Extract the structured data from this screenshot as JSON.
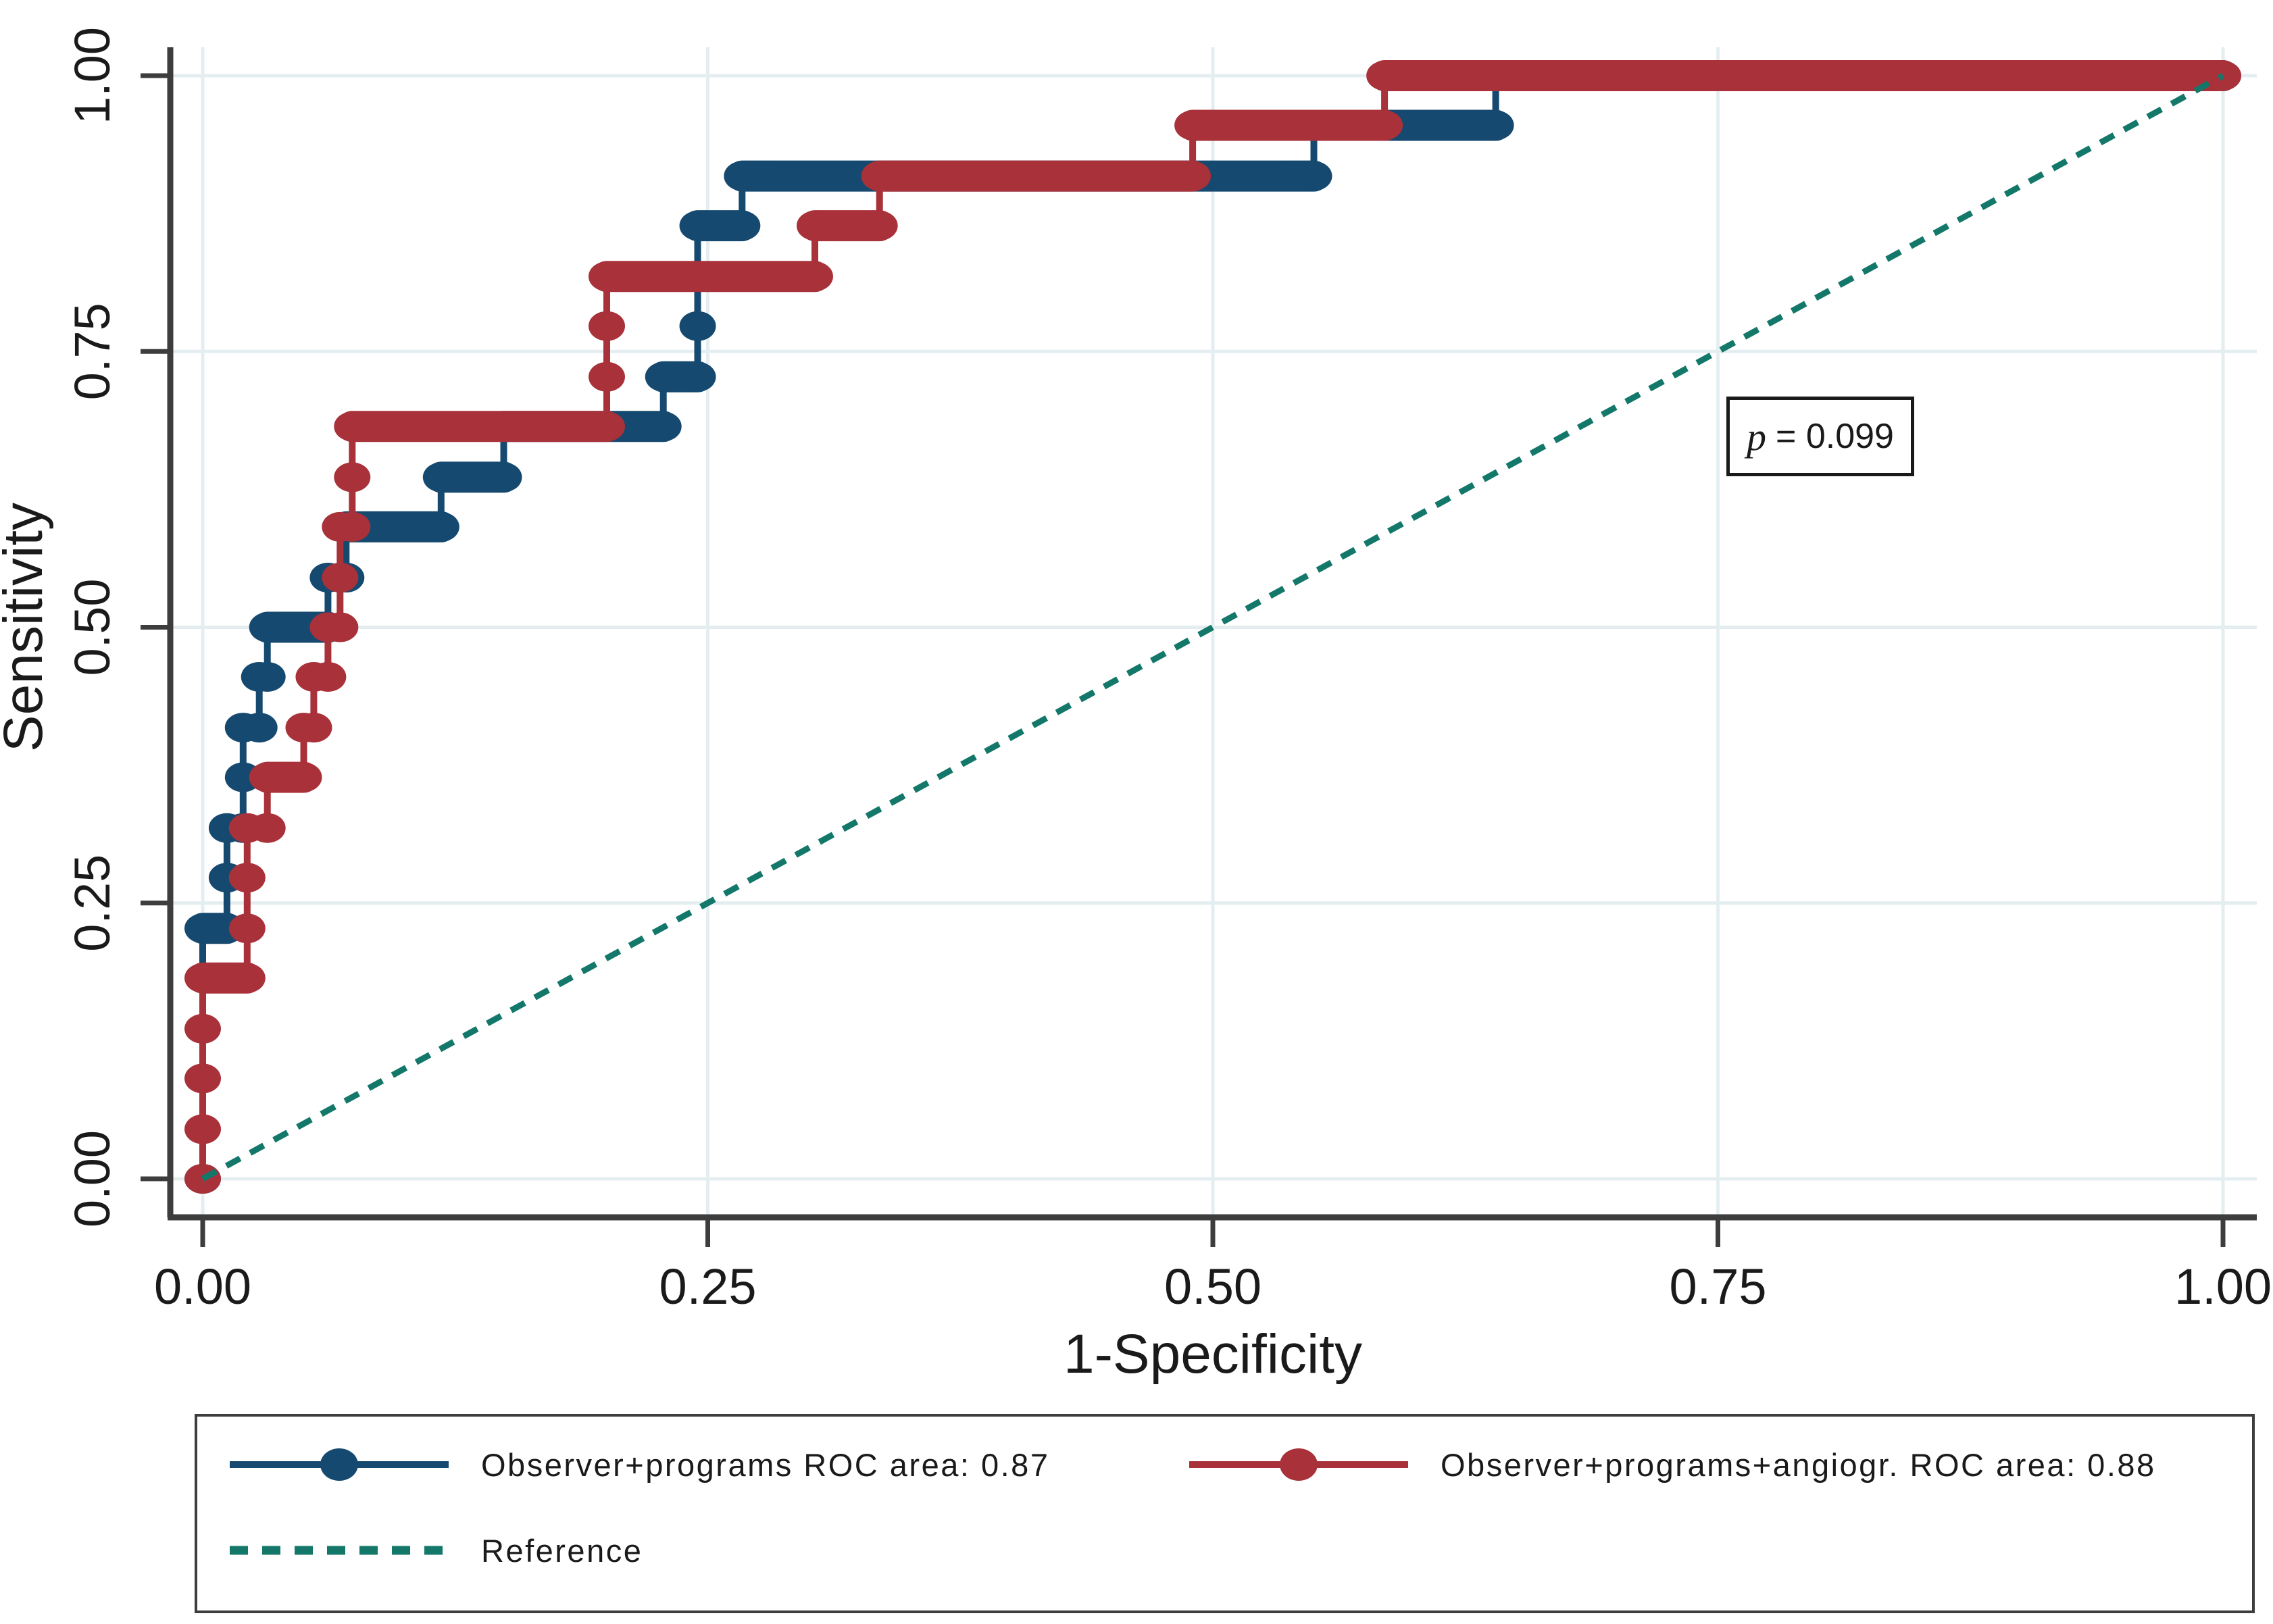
{
  "chart_data": {
    "type": "line",
    "subtype": "roc-step-comparison",
    "title": "",
    "xlabel": "1-Specificity",
    "ylabel": "Sensitivity",
    "xlim": [
      0,
      1
    ],
    "ylim": [
      0,
      1
    ],
    "grid": true,
    "legend_position": "bottom-box",
    "x_ticks": [
      "0.00",
      "0.25",
      "0.50",
      "0.75",
      "1.00"
    ],
    "y_ticks": [
      "0.00",
      "0.25",
      "0.50",
      "0.75",
      "1.00"
    ],
    "axis_color": "#3d3d3d",
    "grid_color": "#e4eef0",
    "text_color": "#1a1a1a",
    "annotation": {
      "label": "p",
      "value": "= 0.099"
    },
    "series": [
      {
        "name": "Observer+programs ROC area: 0.87",
        "roc_area": 0.87,
        "color": "#16496f",
        "style": "step-markers",
        "points": [
          [
            0.0,
            0.0
          ],
          [
            0.0,
            0.227
          ],
          [
            0.012,
            0.227
          ],
          [
            0.012,
            0.273
          ],
          [
            0.012,
            0.318
          ],
          [
            0.02,
            0.318
          ],
          [
            0.02,
            0.364
          ],
          [
            0.02,
            0.409
          ],
          [
            0.028,
            0.409
          ],
          [
            0.028,
            0.455
          ],
          [
            0.032,
            0.455
          ],
          [
            0.032,
            0.5
          ],
          [
            0.062,
            0.5
          ],
          [
            0.062,
            0.545
          ],
          [
            0.071,
            0.545
          ],
          [
            0.071,
            0.591
          ],
          [
            0.118,
            0.591
          ],
          [
            0.118,
            0.636
          ],
          [
            0.149,
            0.636
          ],
          [
            0.149,
            0.682
          ],
          [
            0.228,
            0.682
          ],
          [
            0.228,
            0.727
          ],
          [
            0.245,
            0.727
          ],
          [
            0.245,
            0.773
          ],
          [
            0.245,
            0.818
          ],
          [
            0.245,
            0.864
          ],
          [
            0.267,
            0.864
          ],
          [
            0.267,
            0.909
          ],
          [
            0.55,
            0.909
          ],
          [
            0.55,
            0.955
          ],
          [
            0.64,
            0.955
          ],
          [
            0.64,
            1.0
          ],
          [
            1.0,
            1.0
          ]
        ]
      },
      {
        "name": "Observer+programs+angiogr. ROC area: 0.88",
        "roc_area": 0.88,
        "color": "#a8313a",
        "style": "step-markers",
        "points": [
          [
            0.0,
            0.0
          ],
          [
            0.0,
            0.045
          ],
          [
            0.0,
            0.091
          ],
          [
            0.0,
            0.136
          ],
          [
            0.0,
            0.182
          ],
          [
            0.022,
            0.182
          ],
          [
            0.022,
            0.227
          ],
          [
            0.022,
            0.273
          ],
          [
            0.022,
            0.318
          ],
          [
            0.032,
            0.318
          ],
          [
            0.032,
            0.364
          ],
          [
            0.05,
            0.364
          ],
          [
            0.05,
            0.409
          ],
          [
            0.055,
            0.409
          ],
          [
            0.055,
            0.455
          ],
          [
            0.062,
            0.455
          ],
          [
            0.062,
            0.5
          ],
          [
            0.068,
            0.5
          ],
          [
            0.068,
            0.545
          ],
          [
            0.068,
            0.591
          ],
          [
            0.074,
            0.591
          ],
          [
            0.074,
            0.636
          ],
          [
            0.074,
            0.682
          ],
          [
            0.2,
            0.682
          ],
          [
            0.2,
            0.727
          ],
          [
            0.2,
            0.773
          ],
          [
            0.2,
            0.818
          ],
          [
            0.303,
            0.818
          ],
          [
            0.303,
            0.864
          ],
          [
            0.335,
            0.864
          ],
          [
            0.335,
            0.909
          ],
          [
            0.49,
            0.909
          ],
          [
            0.49,
            0.955
          ],
          [
            0.585,
            0.955
          ],
          [
            0.585,
            1.0
          ],
          [
            1.0,
            1.0
          ]
        ]
      },
      {
        "name": "Reference",
        "color": "#13786a",
        "style": "dashed",
        "points": [
          [
            0,
            0
          ],
          [
            1,
            1
          ]
        ]
      }
    ]
  }
}
